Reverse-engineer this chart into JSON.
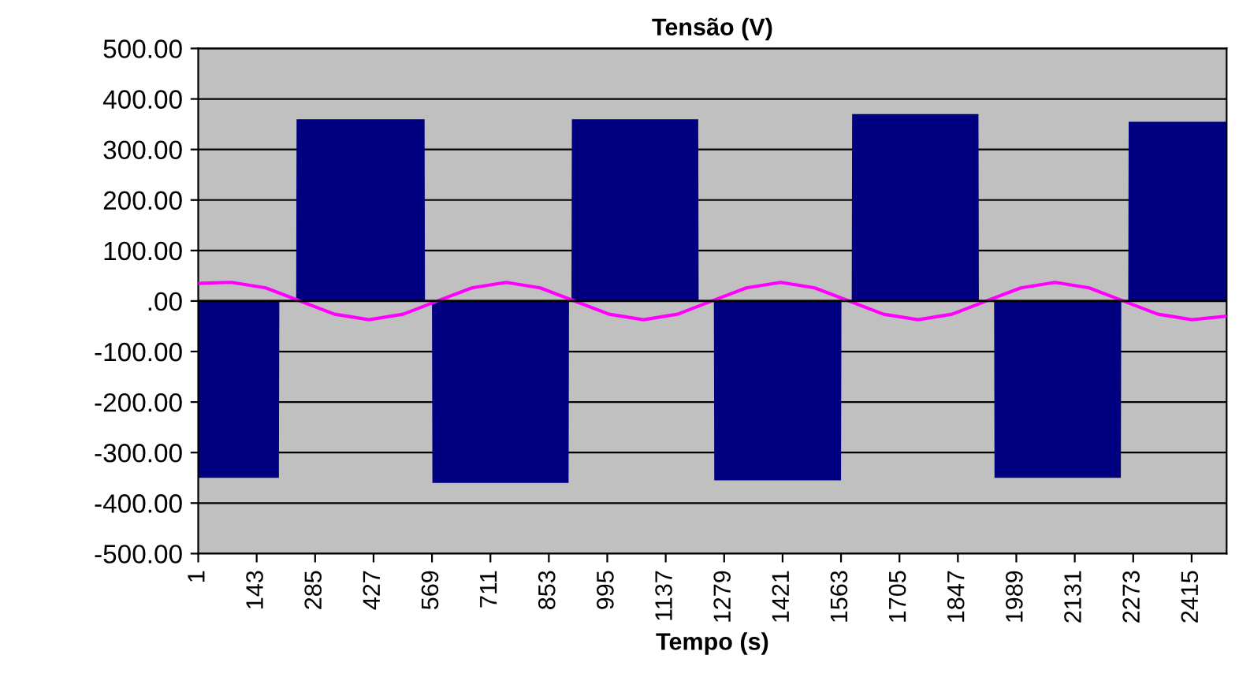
{
  "chart_data": {
    "type": "line",
    "title": "Tensão (V)",
    "xlabel": "Tempo (s)",
    "xlim": [
      1,
      2500
    ],
    "xticks": [
      1,
      143,
      285,
      427,
      569,
      711,
      853,
      995,
      1137,
      1279,
      1421,
      1563,
      1705,
      1847,
      1989,
      2131,
      2273,
      2415
    ],
    "ylim": [
      -500,
      500
    ],
    "yticks": [
      {
        "value": -500,
        "label": "-500.00"
      },
      {
        "value": -400,
        "label": "-400.00"
      },
      {
        "value": -300,
        "label": "-300.00"
      },
      {
        "value": -200,
        "label": "-200.00"
      },
      {
        "value": -100,
        "label": "-100.00"
      },
      {
        "value": 0,
        "label": ".00"
      },
      {
        "value": 100,
        "label": "100.00"
      },
      {
        "value": 200,
        "label": "200.00"
      },
      {
        "value": 300,
        "label": "300.00"
      },
      {
        "value": 400,
        "label": "400.00"
      },
      {
        "value": 500,
        "label": "500.00"
      }
    ],
    "grid": "y",
    "series": [
      {
        "type": "area",
        "color": "#000080",
        "x": [
          1,
          197,
          198,
          239,
          240,
          551,
          552,
          569,
          570,
          901,
          902,
          908,
          909,
          1216,
          1217,
          1254,
          1255,
          1563,
          1564,
          1589,
          1590,
          1897,
          1898,
          1935,
          1936,
          2243,
          2244,
          2261,
          2262,
          2500
        ],
        "values": [
          -350,
          -350,
          0,
          0,
          360,
          360,
          0,
          0,
          -360,
          -360,
          0,
          0,
          360,
          360,
          0,
          0,
          -355,
          -355,
          0,
          0,
          370,
          370,
          0,
          0,
          -350,
          -350,
          0,
          0,
          355,
          355
        ]
      },
      {
        "type": "line",
        "color": "#ff00ff",
        "x": [
          1,
          82,
          165,
          249,
          332,
          416,
          499,
          582,
          666,
          749,
          832,
          916,
          999,
          1083,
          1166,
          1249,
          1333,
          1416,
          1499,
          1583,
          1666,
          1750,
          1833,
          1916,
          2000,
          2083,
          2166,
          2249,
          2333,
          2416,
          2500
        ],
        "values": [
          35,
          37,
          26,
          0,
          -26,
          -37,
          -26,
          0,
          26,
          37,
          26,
          0,
          -26,
          -37,
          -26,
          0,
          26,
          37,
          26,
          0,
          -26,
          -37,
          -26,
          0,
          26,
          37,
          26,
          0,
          -26,
          -37,
          -30
        ]
      }
    ]
  }
}
